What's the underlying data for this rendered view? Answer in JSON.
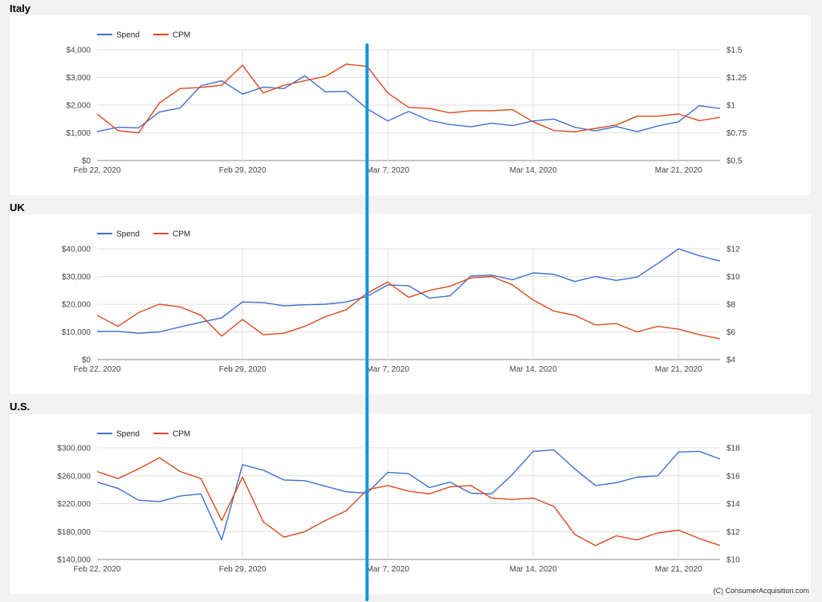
{
  "credit": "(C) ConsumerAcquisition.com",
  "colors": {
    "spend": "#3e6fd1",
    "cpm": "#dc4a1f",
    "marker": "#1496d8",
    "grid": "#dddddd"
  },
  "x_labels": [
    {
      "index": 0,
      "label": "Feb 22, 2020"
    },
    {
      "index": 7,
      "label": "Feb 29, 2020"
    },
    {
      "index": 14,
      "label": "Mar 7, 2020"
    },
    {
      "index": 21,
      "label": "Mar 14, 2020"
    },
    {
      "index": 28,
      "label": "Mar 21, 2020"
    }
  ],
  "marker_index": 13,
  "chart_data": [
    {
      "type": "line",
      "title": "Italy",
      "legend": [
        "Spend",
        "CPM"
      ],
      "x_count": 31,
      "y_left": {
        "min": 0,
        "max": 4000,
        "ticks": [
          "$0",
          "$1,000",
          "$2,000",
          "$3,000",
          "$4,000"
        ]
      },
      "y_right": {
        "min": 0.5,
        "max": 1.5,
        "ticks": [
          "$0.5",
          "$0.75",
          "$1",
          "$1.25",
          "$1.5"
        ]
      },
      "series": [
        {
          "name": "Spend",
          "axis": "left",
          "values": [
            1050,
            1200,
            1180,
            1750,
            1900,
            2700,
            2880,
            2400,
            2650,
            2600,
            3060,
            2480,
            2500,
            1870,
            1430,
            1770,
            1450,
            1300,
            1220,
            1350,
            1260,
            1430,
            1500,
            1200,
            1070,
            1230,
            1040,
            1250,
            1400,
            1980,
            1880
          ]
        },
        {
          "name": "CPM",
          "axis": "right",
          "values": [
            0.92,
            0.77,
            0.75,
            1.02,
            1.15,
            1.16,
            1.18,
            1.36,
            1.11,
            1.18,
            1.22,
            1.26,
            1.37,
            1.35,
            1.11,
            0.98,
            0.97,
            0.93,
            0.95,
            0.95,
            0.96,
            0.85,
            0.77,
            0.76,
            0.79,
            0.82,
            0.9,
            0.9,
            0.92,
            0.86,
            0.89
          ]
        }
      ]
    },
    {
      "type": "line",
      "title": "UK",
      "legend": [
        "Spend",
        "CPM"
      ],
      "x_count": 31,
      "y_left": {
        "min": 0,
        "max": 40000,
        "ticks": [
          "$0",
          "$10,000",
          "$20,000",
          "$30,000",
          "$40,000"
        ]
      },
      "y_right": {
        "min": 4,
        "max": 12,
        "ticks": [
          "$4",
          "$6",
          "$8",
          "$10",
          "$12"
        ]
      },
      "series": [
        {
          "name": "Spend",
          "axis": "left",
          "values": [
            10200,
            10200,
            9500,
            10000,
            11800,
            13500,
            15100,
            20800,
            20600,
            19400,
            19800,
            20000,
            20800,
            22800,
            27000,
            26700,
            22200,
            23000,
            30200,
            30500,
            28800,
            31300,
            30800,
            28200,
            30000,
            28600,
            29800,
            34700,
            40000,
            37500,
            35600
          ]
        },
        {
          "name": "CPM",
          "axis": "right",
          "values": [
            7.2,
            6.4,
            7.4,
            8.0,
            7.8,
            7.2,
            5.7,
            6.9,
            5.8,
            5.9,
            6.4,
            7.1,
            7.6,
            8.8,
            9.6,
            8.5,
            9.0,
            9.3,
            9.9,
            10.0,
            9.4,
            8.3,
            7.5,
            7.2,
            6.5,
            6.6,
            6.0,
            6.4,
            6.2,
            5.8,
            5.5
          ]
        }
      ]
    },
    {
      "type": "line",
      "title": "U.S.",
      "legend": [
        "Spend",
        "CPM"
      ],
      "x_count": 31,
      "y_left": {
        "min": 140000,
        "max": 300000,
        "ticks": [
          "$140,000",
          "$180,000",
          "$220,000",
          "$260,000",
          "$300,000"
        ]
      },
      "y_right": {
        "min": 10,
        "max": 18,
        "ticks": [
          "$10",
          "$12",
          "$14",
          "$16",
          "$18"
        ]
      },
      "series": [
        {
          "name": "Spend",
          "axis": "left",
          "values": [
            251000,
            242000,
            225000,
            223000,
            231000,
            234000,
            168000,
            276000,
            268000,
            254000,
            253000,
            245000,
            237000,
            235000,
            265000,
            263000,
            243000,
            251000,
            235000,
            234000,
            262000,
            295000,
            297000,
            270000,
            246000,
            250000,
            258000,
            260000,
            294000,
            295000,
            284000
          ]
        },
        {
          "name": "CPM",
          "axis": "right",
          "values": [
            16.3,
            15.8,
            16.5,
            17.3,
            16.3,
            15.8,
            12.8,
            15.9,
            12.7,
            11.6,
            12.0,
            12.8,
            13.5,
            15.0,
            15.3,
            14.9,
            14.7,
            15.2,
            15.3,
            14.4,
            14.3,
            14.4,
            13.8,
            11.8,
            11.0,
            11.7,
            11.4,
            11.9,
            12.1,
            11.5,
            11.0
          ]
        }
      ]
    }
  ]
}
